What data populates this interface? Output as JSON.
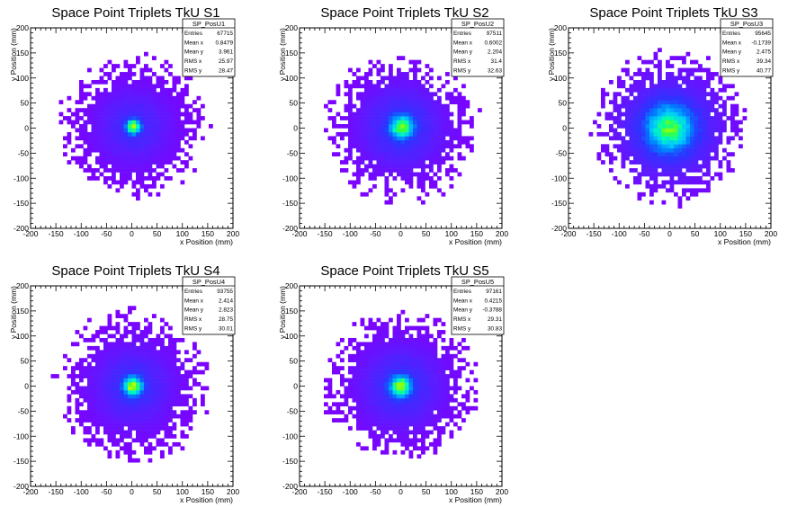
{
  "chart_data": [
    {
      "type": "heatmap",
      "title": "Space Point Triplets TkU S1",
      "xlabel": "x Position (mm)",
      "ylabel": "y Position (mm)",
      "xlim": [
        -200,
        200
      ],
      "ylim": [
        -200,
        200
      ],
      "xticks": [
        "-200",
        "-150",
        "-100",
        "-50",
        "0",
        "50",
        "100",
        "150",
        "200"
      ],
      "yticks": [
        "-200",
        "-150",
        "-100",
        "-50",
        "0",
        "50",
        "100",
        "150",
        "200"
      ],
      "stats": {
        "name": "SP_PosU1",
        "rows": [
          {
            "label": "Entries",
            "value": "67715"
          },
          {
            "label": "Mean x",
            "value": "0.8479"
          },
          {
            "label": "Mean y",
            "value": "3.961"
          },
          {
            "label": "RMS x",
            "value": "25.97"
          },
          {
            "label": "RMS y",
            "value": "28.47"
          }
        ]
      },
      "distribution": {
        "center_x": 3,
        "center_y": 3,
        "core_sigma": 9,
        "halo_sigma": 55,
        "halo_radius": 145,
        "core_mix": 0.55,
        "seed": 11
      }
    },
    {
      "type": "heatmap",
      "title": "Space Point Triplets TkU S2",
      "xlabel": "x Position (mm)",
      "ylabel": "y Position (mm)",
      "xlim": [
        -200,
        200
      ],
      "ylim": [
        -200,
        200
      ],
      "xticks": [
        "-200",
        "-150",
        "-100",
        "-50",
        "0",
        "50",
        "100",
        "150",
        "200"
      ],
      "yticks": [
        "-200",
        "-150",
        "-100",
        "-50",
        "0",
        "50",
        "100",
        "150",
        "200"
      ],
      "stats": {
        "name": "SP_PosU2",
        "rows": [
          {
            "label": "Entries",
            "value": "97511"
          },
          {
            "label": "Mean x",
            "value": "0.6002"
          },
          {
            "label": "Mean y",
            "value": "2.204"
          },
          {
            "label": "RMS x",
            "value": "31.4"
          },
          {
            "label": "RMS y",
            "value": "32.63"
          }
        ]
      },
      "distribution": {
        "center_x": 2,
        "center_y": 2,
        "core_sigma": 14,
        "halo_sigma": 60,
        "halo_radius": 148,
        "core_mix": 0.45,
        "seed": 23
      }
    },
    {
      "type": "heatmap",
      "title": "Space Point Triplets TkU S3",
      "xlabel": "x Position (mm)",
      "ylabel": "y Position (mm)",
      "xlim": [
        -200,
        200
      ],
      "ylim": [
        -200,
        200
      ],
      "xticks": [
        "-200",
        "-150",
        "-100",
        "-50",
        "0",
        "50",
        "100",
        "150",
        "200"
      ],
      "yticks": [
        "-200",
        "-150",
        "-100",
        "-50",
        "0",
        "50",
        "100",
        "150",
        "200"
      ],
      "stats": {
        "name": "SP_PosU3",
        "rows": [
          {
            "label": "Entries",
            "value": "95645"
          },
          {
            "label": "Mean x",
            "value": "-0.1739"
          },
          {
            "label": "Mean y",
            "value": "2.475"
          },
          {
            "label": "RMS x",
            "value": "39.34"
          },
          {
            "label": "RMS y",
            "value": "40.77"
          }
        ]
      },
      "distribution": {
        "center_x": 0,
        "center_y": 0,
        "core_sigma": 28,
        "halo_sigma": 70,
        "halo_radius": 150,
        "core_mix": 0.35,
        "seed": 37
      }
    },
    {
      "type": "heatmap",
      "title": "Space Point Triplets TkU S4",
      "xlabel": "x Position (mm)",
      "ylabel": "y Position (mm)",
      "xlim": [
        -200,
        200
      ],
      "ylim": [
        -200,
        200
      ],
      "xticks": [
        "-200",
        "-150",
        "-100",
        "-50",
        "0",
        "50",
        "100",
        "150",
        "200"
      ],
      "yticks": [
        "-200",
        "-150",
        "-100",
        "-50",
        "0",
        "50",
        "100",
        "150",
        "200"
      ],
      "stats": {
        "name": "SP_PosU4",
        "rows": [
          {
            "label": "Entries",
            "value": "93755"
          },
          {
            "label": "Mean x",
            "value": "2.414"
          },
          {
            "label": "Mean y",
            "value": "2.823"
          },
          {
            "label": "RMS x",
            "value": "28.75"
          },
          {
            "label": "RMS y",
            "value": "30.01"
          }
        ]
      },
      "distribution": {
        "center_x": 2,
        "center_y": 0,
        "core_sigma": 12,
        "halo_sigma": 58,
        "halo_radius": 150,
        "core_mix": 0.5,
        "seed": 41
      }
    },
    {
      "type": "heatmap",
      "title": "Space Point Triplets TkU S5",
      "xlabel": "x Position (mm)",
      "ylabel": "y Position (mm)",
      "xlim": [
        -200,
        200
      ],
      "ylim": [
        -200,
        200
      ],
      "xticks": [
        "-200",
        "-150",
        "-100",
        "-50",
        "0",
        "50",
        "100",
        "150",
        "200"
      ],
      "yticks": [
        "-200",
        "-150",
        "-100",
        "-50",
        "0",
        "50",
        "100",
        "150",
        "200"
      ],
      "stats": {
        "name": "SP_PosU5",
        "rows": [
          {
            "label": "Entries",
            "value": "97161"
          },
          {
            "label": "Mean x",
            "value": "0.4215"
          },
          {
            "label": "Mean y",
            "value": "-0.3788"
          },
          {
            "label": "RMS x",
            "value": "29.31"
          },
          {
            "label": "RMS y",
            "value": "30.83"
          }
        ]
      },
      "distribution": {
        "center_x": 0,
        "center_y": 0,
        "core_sigma": 13,
        "halo_sigma": 60,
        "halo_radius": 150,
        "core_mix": 0.48,
        "seed": 53
      }
    }
  ],
  "colors": {
    "background": "#ffffff",
    "palette": [
      "#7f00ff",
      "#5a1cff",
      "#2a35ff",
      "#0080ff",
      "#00c8ff",
      "#00ffb0",
      "#3cff3c",
      "#b4ff00",
      "#ffff00",
      "#ffb000",
      "#ff5000",
      "#ff0000"
    ]
  }
}
